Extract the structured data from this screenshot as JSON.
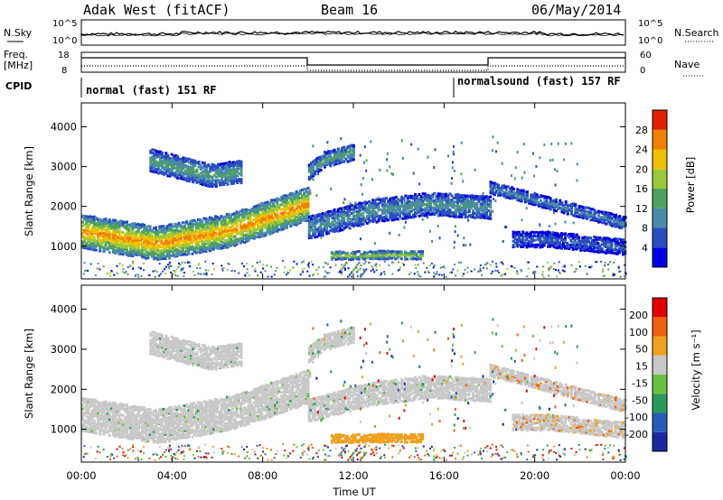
{
  "header": {
    "station": "Adak West (fitACF)",
    "beam": "Beam 16",
    "date": "06/May/2014"
  },
  "top_labels": {
    "nsky": "N.Sky",
    "nsearch": "N.Search",
    "freq_line1": "Freq.",
    "freq_line2": "[MHz]",
    "nave": "Nave",
    "cpid": "CPID",
    "noise_ticks_left": [
      "10^5",
      "10^0"
    ],
    "noise_ticks_right": [
      "10^5",
      "10^0"
    ],
    "freq_ticks": [
      "18",
      "8"
    ],
    "nave_ticks": [
      "60",
      "0"
    ]
  },
  "modes": [
    {
      "label": "normal (fast) 151 RF"
    },
    {
      "label": "normalsound (fast) 157 RF"
    }
  ],
  "power_colorbar": {
    "label": "Power [dB]",
    "ticks": [
      "28",
      "24",
      "20",
      "16",
      "12",
      "8",
      "4"
    ],
    "colors": [
      "#0000e0",
      "#2a4ec0",
      "#4a8aa8",
      "#4fa060",
      "#9ac83a",
      "#f0c000",
      "#f08000",
      "#e02000"
    ]
  },
  "velocity_colorbar": {
    "label": "Velocity [m s⁻¹]",
    "ticks": [
      "200",
      "100",
      "50",
      "15",
      "-15",
      "-50",
      "-100",
      "-200"
    ],
    "colors": [
      "#1a2a9e",
      "#2a5ab8",
      "#2a9a5a",
      "#6ac040",
      "#c8c8c8",
      "#f0a020",
      "#f06010",
      "#e00000"
    ]
  },
  "chart_data": [
    {
      "type": "heatmap",
      "name_panel": "power",
      "ylabel": "Slant Range [km]",
      "ylim": [
        180,
        4600
      ],
      "yticks": [
        "4000",
        "3000",
        "2000",
        "1000"
      ],
      "xlim": [
        0,
        24
      ],
      "xticks": [
        "00:00",
        "04:00",
        "08:00",
        "12:00",
        "16:00",
        "20:00",
        "00:00"
      ],
      "bands": [
        {
          "t": [
            0,
            10
          ],
          "r": [
            1400,
            1100,
            1450,
            2100
          ],
          "level": 26,
          "width": 420
        },
        {
          "t": [
            10,
            18
          ],
          "r": [
            1500,
            1900,
            2100,
            2000
          ],
          "level": 12,
          "width": 260
        },
        {
          "t": [
            18,
            24
          ],
          "r": [
            2500,
            2200,
            1900,
            1600
          ],
          "level": 10,
          "width": 140
        },
        {
          "t": [
            19,
            24
          ],
          "r": [
            1200,
            1200,
            1100,
            1000
          ],
          "level": 7,
          "width": 180
        },
        {
          "t": [
            3,
            7
          ],
          "r": [
            3200,
            3000,
            2800,
            2900
          ],
          "level": 14,
          "width": 250
        },
        {
          "t": [
            10,
            12
          ],
          "r": [
            2900,
            3200,
            3300,
            3400
          ],
          "level": 14,
          "width": 160
        },
        {
          "t": [
            11,
            15
          ],
          "r": [
            800,
            800,
            820,
            800
          ],
          "level": 18,
          "width": 90
        }
      ]
    },
    {
      "type": "heatmap",
      "name_panel": "velocity",
      "ylabel": "Slant Range [km]",
      "ylim": [
        180,
        4600
      ],
      "yticks": [
        "4000",
        "3000",
        "2000",
        "1000"
      ],
      "xlim": [
        0,
        24
      ],
      "xticks": [
        "00:00",
        "04:00",
        "08:00",
        "12:00",
        "16:00",
        "20:00",
        "00:00"
      ],
      "xlabel": "Time UT",
      "dominant_velocity": "-15 to 15 (ground scatter)"
    }
  ]
}
